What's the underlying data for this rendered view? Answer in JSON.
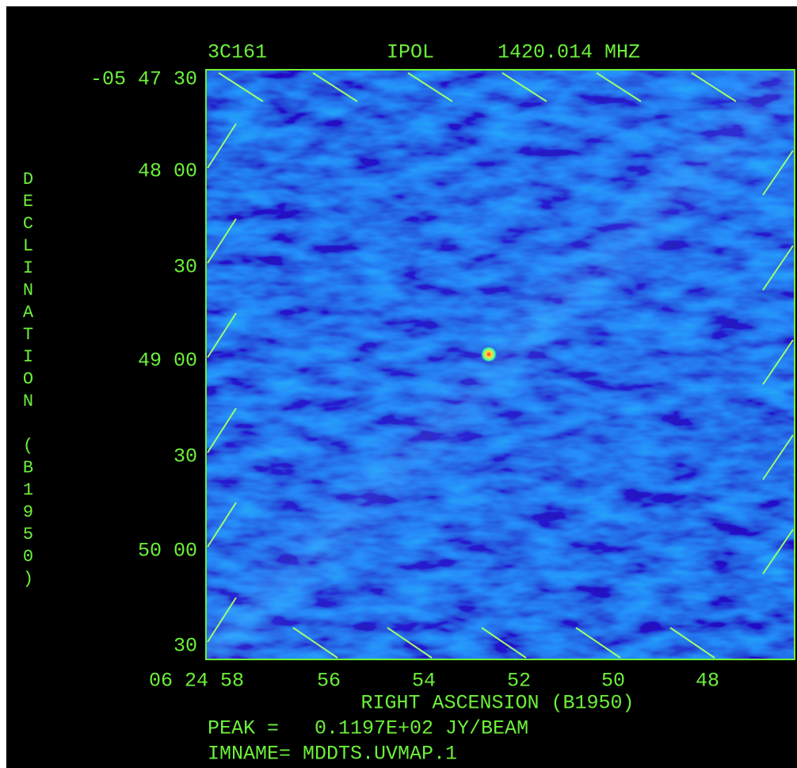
{
  "header": {
    "source": "3C161",
    "stokes": "IPOL",
    "frequency": "1420.014 MHZ"
  },
  "y_axis": {
    "label": "DECLINATION (B1950)",
    "ticks": [
      "-05 47 30",
      "48 00",
      "30",
      "49 00",
      "30",
      "50 00",
      "30"
    ]
  },
  "x_axis": {
    "label": "RIGHT ASCENSION (B1950)",
    "ticks": [
      "06 24 58",
      "56",
      "54",
      "52",
      "50",
      "48"
    ]
  },
  "footer": {
    "peak": "PEAK =   0.1197E+02 JY/BEAM",
    "imname": "IMNAME= MDDTS.UVMAP.1"
  }
}
